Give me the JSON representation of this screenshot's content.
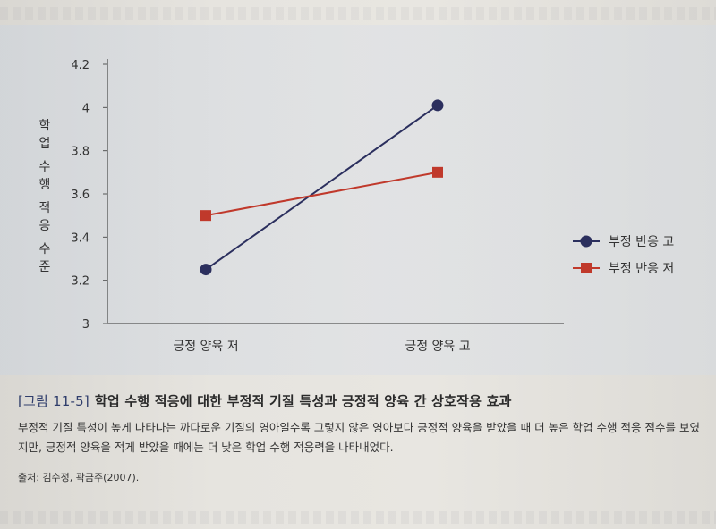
{
  "chart_data": {
    "type": "line",
    "categories": [
      "긍정 양육 저",
      "긍정 양육 고"
    ],
    "series": [
      {
        "name": "부정 반응 고",
        "values": [
          3.25,
          4.01
        ],
        "color": "#2b2f5e",
        "marker": "circle"
      },
      {
        "name": "부정 반응 저",
        "values": [
          3.5,
          3.7
        ],
        "color": "#c0392b",
        "marker": "square"
      }
    ],
    "ylabel": "학업 수행 적응 수준",
    "ylim": [
      3,
      4.2
    ],
    "yticks": [
      "3",
      "3.2",
      "3.4",
      "3.6",
      "3.8",
      "4",
      "4.2"
    ],
    "legend_position": "right",
    "grid": false
  },
  "caption": {
    "fig_number": "[그림 11-5]",
    "title": "학업 수행 적응에 대한 부정적 기질 특성과 긍정적 양육 간 상호작용 효과",
    "body": "부정적 기질 특성이 높게 나타나는 까다로운 기질의 영아일수록 그렇지 않은 영아보다 긍정적 양육을 받았을 때 더 높은 학업 수행 적응 점수를 보였지만, 긍정적 양육을 적게 받았을 때에는 더 낮은 학업 수행 적응력을 나타내었다.",
    "source": "출처: 김수정, 곽금주(2007)."
  }
}
